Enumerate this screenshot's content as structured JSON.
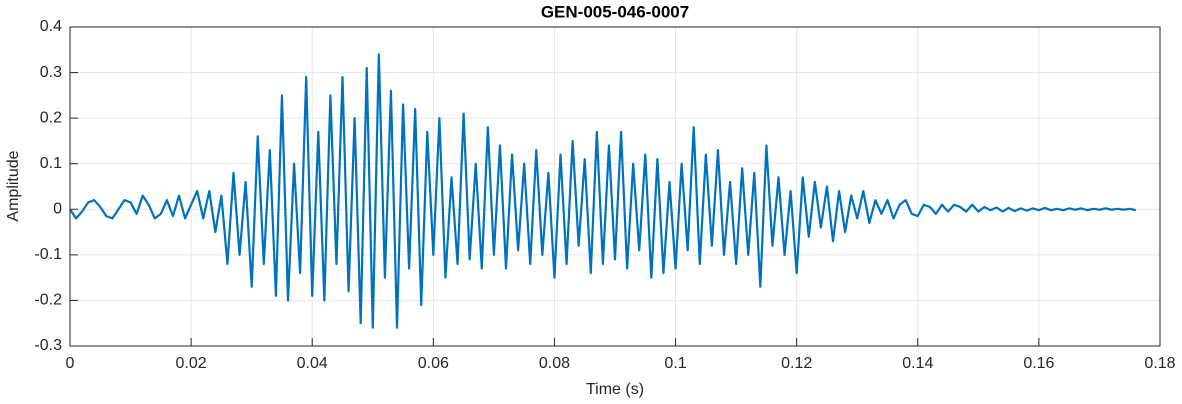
{
  "chart_data": {
    "type": "line",
    "title": "GEN-005-046-0007",
    "x_label": "Time (s)",
    "y_label": "Amplitude",
    "grid": true,
    "xlim": [
      0,
      0.18
    ],
    "ylim": [
      -0.3,
      0.4
    ],
    "xticks": [
      0,
      0.02,
      0.04,
      0.06,
      0.08,
      0.1,
      0.12,
      0.14,
      0.16,
      0.18
    ],
    "yticks": [
      -0.3,
      -0.2,
      -0.1,
      0,
      0.1,
      0.2,
      0.3,
      0.4
    ],
    "x": [
      0,
      0.001,
      0.002,
      0.003,
      0.004,
      0.005,
      0.006,
      0.007,
      0.008,
      0.009,
      0.01,
      0.011,
      0.012,
      0.013,
      0.014,
      0.015,
      0.016,
      0.017,
      0.018,
      0.019,
      0.02,
      0.021,
      0.022,
      0.023,
      0.024,
      0.025,
      0.026,
      0.027,
      0.028,
      0.029,
      0.03,
      0.031,
      0.032,
      0.033,
      0.034,
      0.035,
      0.036,
      0.037,
      0.038,
      0.039,
      0.04,
      0.041,
      0.042,
      0.043,
      0.044,
      0.045,
      0.046,
      0.047,
      0.048,
      0.049,
      0.05,
      0.051,
      0.052,
      0.053,
      0.054,
      0.055,
      0.056,
      0.057,
      0.058,
      0.059,
      0.06,
      0.061,
      0.062,
      0.063,
      0.064,
      0.065,
      0.066,
      0.067,
      0.068,
      0.069,
      0.07,
      0.071,
      0.072,
      0.073,
      0.074,
      0.075,
      0.076,
      0.077,
      0.078,
      0.079,
      0.08,
      0.081,
      0.082,
      0.083,
      0.084,
      0.085,
      0.086,
      0.087,
      0.088,
      0.089,
      0.09,
      0.091,
      0.092,
      0.093,
      0.094,
      0.095,
      0.096,
      0.097,
      0.098,
      0.099,
      0.1,
      0.101,
      0.102,
      0.103,
      0.104,
      0.105,
      0.106,
      0.107,
      0.108,
      0.109,
      0.11,
      0.111,
      0.112,
      0.113,
      0.114,
      0.115,
      0.116,
      0.117,
      0.118,
      0.119,
      0.12,
      0.121,
      0.122,
      0.123,
      0.124,
      0.125,
      0.126,
      0.127,
      0.128,
      0.129,
      0.13,
      0.131,
      0.132,
      0.133,
      0.134,
      0.135,
      0.136,
      0.137,
      0.138,
      0.139,
      0.14,
      0.141,
      0.142,
      0.143,
      0.144,
      0.145,
      0.146,
      0.147,
      0.148,
      0.149,
      0.15,
      0.151,
      0.152,
      0.153,
      0.154,
      0.155,
      0.156,
      0.157,
      0.158,
      0.159,
      0.16,
      0.161,
      0.162,
      0.163,
      0.164,
      0.165,
      0.166,
      0.167,
      0.168,
      0.169,
      0.17,
      0.171,
      0.172,
      0.173,
      0.174,
      0.175,
      0.176
    ],
    "series": [
      {
        "color": "#0072bd",
        "values": [
          0,
          -0.02,
          -0.005,
          0.015,
          0.02,
          0.005,
          -0.015,
          -0.02,
          0,
          0.02,
          0.015,
          -0.01,
          0.03,
          0.01,
          -0.02,
          -0.01,
          0.02,
          -0.015,
          0.03,
          -0.02,
          0.01,
          0.04,
          -0.02,
          0.04,
          -0.05,
          0.03,
          -0.12,
          0.08,
          -0.1,
          0.06,
          -0.17,
          0.16,
          -0.12,
          0.13,
          -0.19,
          0.25,
          -0.2,
          0.1,
          -0.14,
          0.29,
          -0.19,
          0.17,
          -0.2,
          0.25,
          -0.12,
          0.29,
          -0.18,
          0.2,
          -0.25,
          0.31,
          -0.26,
          0.34,
          -0.15,
          0.26,
          -0.26,
          0.23,
          -0.13,
          0.22,
          -0.21,
          0.17,
          -0.1,
          0.2,
          -0.15,
          0.07,
          -0.12,
          0.21,
          -0.11,
          0.1,
          -0.13,
          0.18,
          -0.1,
          0.14,
          -0.13,
          0.12,
          -0.09,
          0.1,
          -0.12,
          0.13,
          -0.1,
          0.08,
          -0.15,
          0.12,
          -0.12,
          0.15,
          -0.08,
          0.11,
          -0.14,
          0.17,
          -0.12,
          0.14,
          -0.11,
          0.17,
          -0.13,
          0.1,
          -0.09,
          0.12,
          -0.15,
          0.11,
          -0.14,
          0.06,
          -0.13,
          0.1,
          -0.09,
          0.18,
          -0.12,
          0.12,
          -0.08,
          0.13,
          -0.1,
          0.06,
          -0.12,
          0.09,
          -0.1,
          0.08,
          -0.17,
          0.14,
          -0.08,
          0.07,
          -0.1,
          0.04,
          -0.14,
          0.07,
          -0.06,
          0.06,
          -0.04,
          0.05,
          -0.07,
          0.04,
          -0.05,
          0.03,
          -0.02,
          0.04,
          -0.03,
          0.02,
          -0.01,
          0.02,
          -0.02,
          0.01,
          0.02,
          -0.01,
          -0.015,
          0.01,
          0.005,
          -0.01,
          0.01,
          -0.005,
          0.01,
          0.005,
          -0.005,
          0.01,
          -0.005,
          0.005,
          -0.002,
          0.004,
          -0.005,
          0.003,
          -0.004,
          0.002,
          -0.003,
          0.002,
          -0.002,
          0.003,
          -0.002,
          0.001,
          -0.002,
          0.002,
          -0.001,
          0.002,
          -0.002,
          0.001,
          -0.001,
          0.002,
          -0.001,
          0.001,
          -0.001,
          0.001,
          -0.002
        ]
      }
    ]
  }
}
